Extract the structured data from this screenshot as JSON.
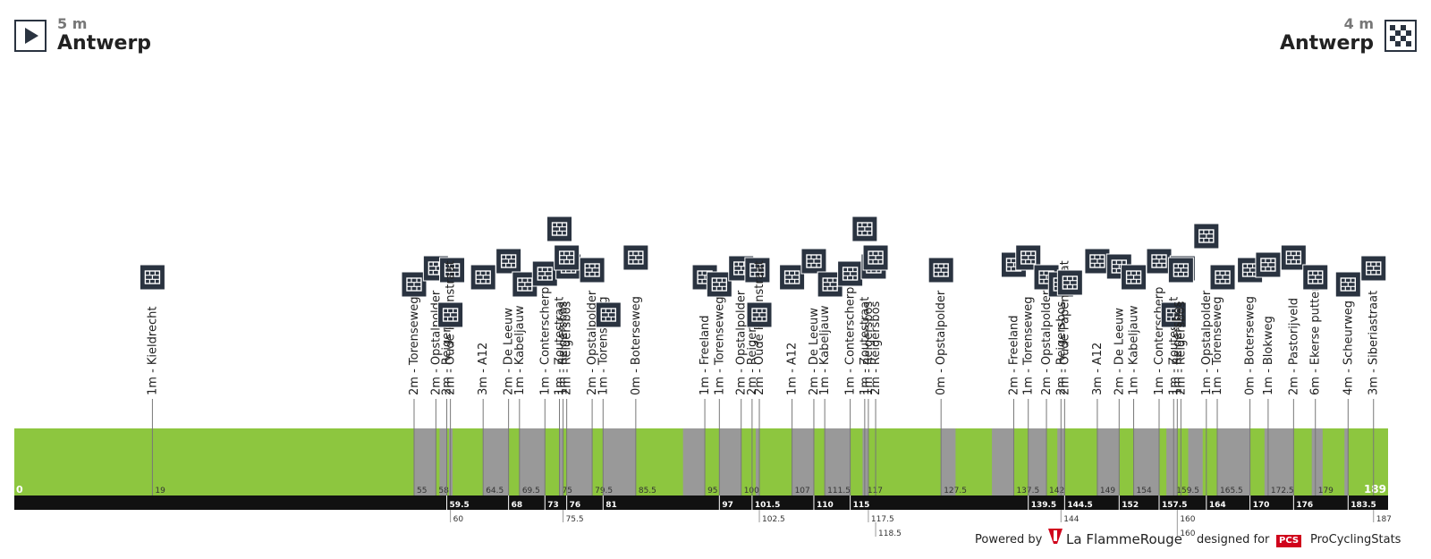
{
  "start": {
    "elevation": "5 m",
    "city": "Antwerp"
  },
  "finish": {
    "elevation": "4 m",
    "city": "Antwerp"
  },
  "footer": {
    "powered_label": "Powered by",
    "lfr_brand": "La FlammeRouge",
    "designed_label": "designed for",
    "pcs_badge": "PCS",
    "pcs_brand": "ProCyclingStats"
  },
  "colors": {
    "grass": "#8dc63f",
    "cobbles": "#999999",
    "axis": "#111111",
    "icon": "#2a3340"
  },
  "chart_data": {
    "type": "area",
    "title": "",
    "xlabel": "",
    "ylabel": "",
    "xlim": [
      0,
      189
    ],
    "x_start_label": "0",
    "x_end_label": "189",
    "sectors": [
      [
        55,
        58
      ],
      [
        58.5,
        59.5
      ],
      [
        59.8,
        60.3
      ],
      [
        64.5,
        68
      ],
      [
        69.5,
        73
      ],
      [
        75,
        75.5
      ],
      [
        76,
        79.5
      ],
      [
        81,
        85.5
      ],
      [
        92,
        95
      ],
      [
        97,
        100
      ],
      [
        102,
        102.5
      ],
      [
        107,
        110
      ],
      [
        111.5,
        115
      ],
      [
        116.7,
        117.5
      ],
      [
        127.5,
        129.5
      ],
      [
        134.5,
        137.5
      ],
      [
        139.5,
        142
      ],
      [
        143.5,
        144.5
      ],
      [
        149,
        152
      ],
      [
        154,
        157.5
      ],
      [
        158.5,
        160
      ],
      [
        161.5,
        163.5
      ],
      [
        165.5,
        170
      ],
      [
        172,
        176
      ],
      [
        178.5,
        180
      ],
      [
        183,
        183.5
      ]
    ],
    "bottom_ticks": [
      "19",
      "55",
      "58",
      "64.5",
      "69.5",
      "75",
      "79.5",
      "85.5",
      "95",
      "100",
      "107",
      "111.5",
      "117",
      "127.5",
      "137.5",
      "142",
      "149",
      "154",
      "159.5",
      "165.5",
      "172.5",
      "179"
    ],
    "axis_row1": [
      "59.5",
      "68",
      "73",
      "76",
      "81",
      "97",
      "101.5",
      "110",
      "115",
      "139.5",
      "144.5",
      "152",
      "157.5",
      "164",
      "170",
      "176",
      "183.5"
    ],
    "axis_row2": [
      "60",
      "75.5",
      "102.5",
      "117.5",
      "144",
      "160",
      "187"
    ],
    "axis_row3": [
      "118.5",
      "160"
    ],
    "markers": [
      {
        "km": 19,
        "label": "1m - Kieldrecht"
      },
      {
        "km": 55,
        "label": "2m - Torenseweg"
      },
      {
        "km": 58,
        "label": "2m - Opstalpolder"
      },
      {
        "km": 59.5,
        "label": "2m - Reigersbos"
      },
      {
        "km": 60,
        "label": "2m - Oude Papenstraat"
      },
      {
        "km": 64.5,
        "label": "3m - A12"
      },
      {
        "km": 68,
        "label": "2m - De Leeuw"
      },
      {
        "km": 69.5,
        "label": "1m - Kabeljauw"
      },
      {
        "km": 73,
        "label": "1m - Conterscherp"
      },
      {
        "km": 75,
        "label": "1m - Zoutestraat"
      },
      {
        "km": 75.5,
        "label": "1m - Reigersbos"
      },
      {
        "km": 76,
        "label": "2m - Reigersbos"
      },
      {
        "km": 79.5,
        "label": "2m - Opstalpolder"
      },
      {
        "km": 81,
        "label": "1m - Torenseweg"
      },
      {
        "km": 85.5,
        "label": "0m - Boterseweg"
      },
      {
        "km": 95,
        "label": "1m - Freeland"
      },
      {
        "km": 97,
        "label": "1m - Torenseweg"
      },
      {
        "km": 100,
        "label": "2m - Opstalpolder"
      },
      {
        "km": 101.5,
        "label": "2m - Reigersbos"
      },
      {
        "km": 102.5,
        "label": "2m - Oude Papenstraat"
      },
      {
        "km": 107,
        "label": "1m - A12"
      },
      {
        "km": 110,
        "label": "2m - De Leeuw"
      },
      {
        "km": 111.5,
        "label": "1m - Kabeljauw"
      },
      {
        "km": 115,
        "label": "1m - Conterscherp"
      },
      {
        "km": 117,
        "label": "1m - Zoutestraat"
      },
      {
        "km": 117.5,
        "label": "1m - Reigersbos"
      },
      {
        "km": 118.5,
        "label": "2m - Reigersbos"
      },
      {
        "km": 127.5,
        "label": "0m - Opstalpolder"
      },
      {
        "km": 137.5,
        "label": "2m - Freeland"
      },
      {
        "km": 139.5,
        "label": "1m - Torenseweg"
      },
      {
        "km": 142,
        "label": "2m - Opstalpolder"
      },
      {
        "km": 144,
        "label": "2m - Reigersbos"
      },
      {
        "km": 144.5,
        "label": "2m - Oude Papenstraat"
      },
      {
        "km": 149,
        "label": "3m - A12"
      },
      {
        "km": 152,
        "label": "2m - De Leeuw"
      },
      {
        "km": 154,
        "label": "1m - Kabeljauw"
      },
      {
        "km": 157.5,
        "label": "1m - Conterscherp"
      },
      {
        "km": 159.5,
        "label": "1m - Zoutestraat"
      },
      {
        "km": 160,
        "label": "1m - Reigersbos"
      },
      {
        "km": 160.5,
        "label": "2m - Reigersbos"
      },
      {
        "km": 164,
        "label": "1m - Opstalpolder"
      },
      {
        "km": 165.5,
        "label": "1m - Torenseweg"
      },
      {
        "km": 170,
        "label": "0m - Boterseweg"
      },
      {
        "km": 172.5,
        "label": "1m - Blokweg"
      },
      {
        "km": 176,
        "label": "2m - Pastorijveld"
      },
      {
        "km": 179,
        "label": "6m - Ekerse putten"
      },
      {
        "km": 183.5,
        "label": "4m - Scheurweg"
      },
      {
        "km": 187,
        "label": "3m - Siberiastraat"
      }
    ]
  }
}
